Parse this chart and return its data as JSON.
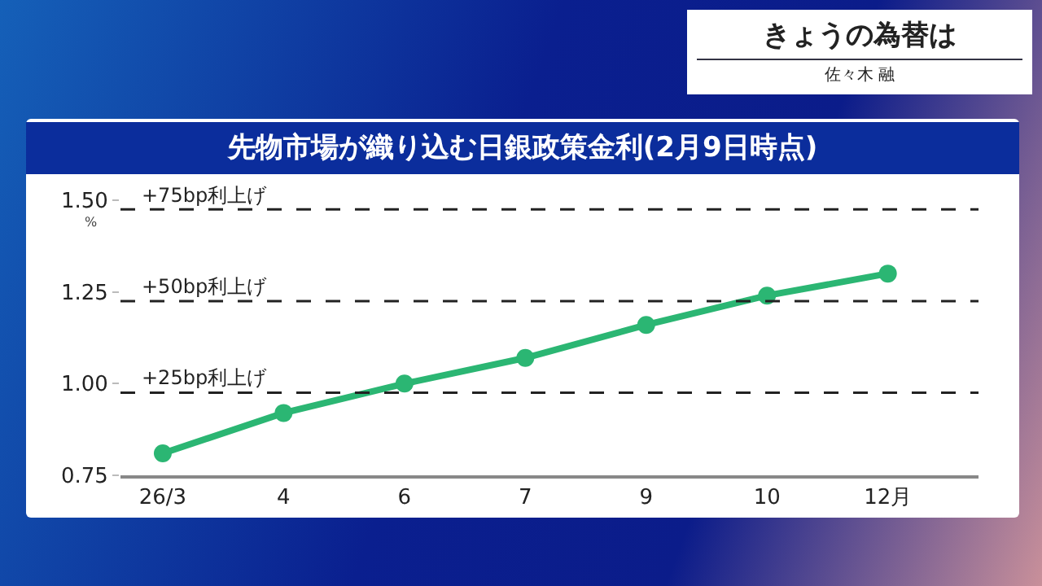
{
  "chart_data": {
    "type": "line",
    "title": "先物市場が織り込む日銀政策金利(2月9日時点)",
    "subtitle": "佐々木 融",
    "annotations": [
      "きょうの為替は"
    ],
    "ylabel": "%",
    "categories": [
      "26/3",
      "4",
      "6",
      "7",
      "9",
      "10",
      "12月"
    ],
    "series": [
      {
        "color": "#2bb673",
        "values": [
          0.81,
          0.92,
          1.0,
          1.07,
          1.16,
          1.24,
          1.3
        ]
      }
    ],
    "ylim": [
      0.75,
      1.5
    ],
    "yticks": [
      {
        "value": 0.75,
        "label": "0.75"
      },
      {
        "value": 1,
        "label": "1.00"
      },
      {
        "value": 1.25,
        "label": "1.25"
      },
      {
        "value": 1.5,
        "label": "1.50"
      }
    ],
    "ref_lines": [
      {
        "axis": "y",
        "value": 1.475,
        "label": "+75bp利上げ",
        "color": "#222222",
        "line_style": "dashed"
      },
      {
        "axis": "y",
        "value": 1.225,
        "label": "+50bp利上げ",
        "color": "#222222",
        "line_style": "dashed"
      },
      {
        "axis": "y",
        "value": 0.975,
        "label": "+25bp利上げ",
        "color": "#222222",
        "line_style": "dashed"
      }
    ],
    "grid": false,
    "marker": "circle",
    "line_style": "solid"
  }
}
